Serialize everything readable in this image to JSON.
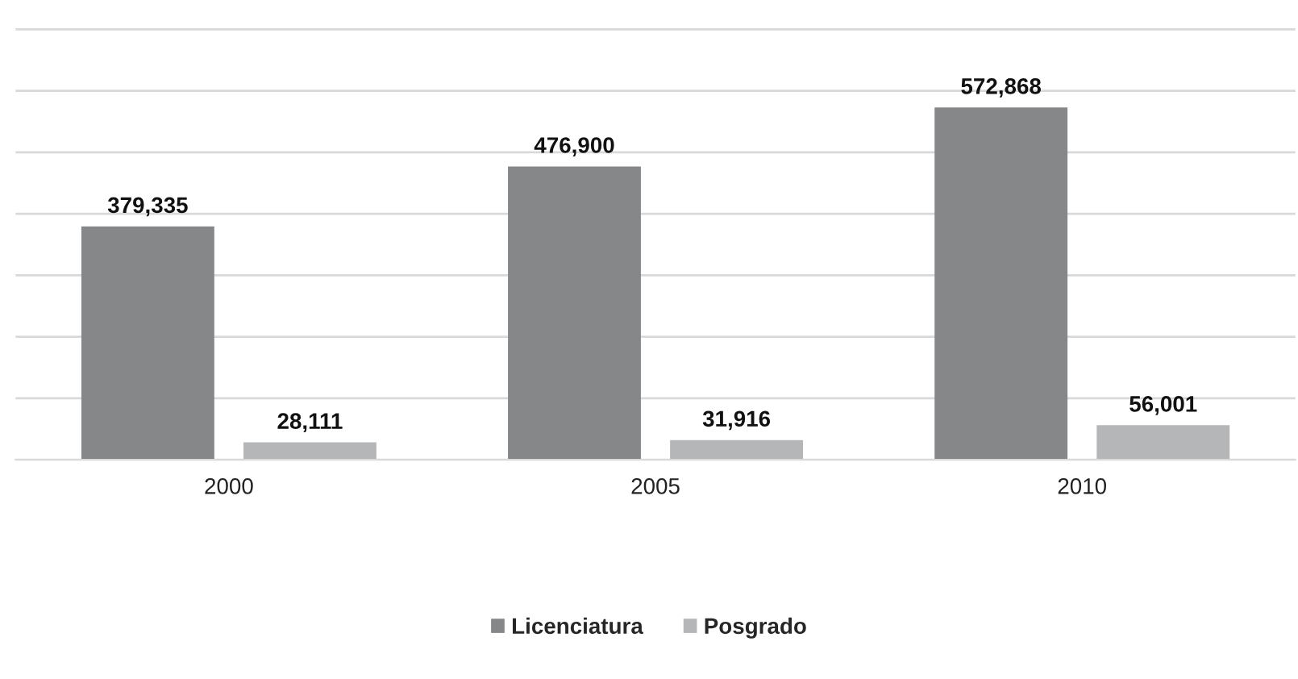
{
  "chart_data": {
    "type": "bar",
    "categories": [
      "2000",
      "2005",
      "2010"
    ],
    "series": [
      {
        "name": "Licenciatura",
        "color": "#858789",
        "values": [
          379335,
          476900,
          572868
        ],
        "value_labels": [
          "379,335",
          "476,900",
          "572,868"
        ]
      },
      {
        "name": "Posgrado",
        "color": "#b4b6b7",
        "values": [
          28111,
          31916,
          56001
        ],
        "value_labels": [
          "28,111",
          "31,916",
          "56,001"
        ]
      }
    ],
    "grid": "y",
    "legend": "bottom",
    "tick_labels": "x"
  }
}
